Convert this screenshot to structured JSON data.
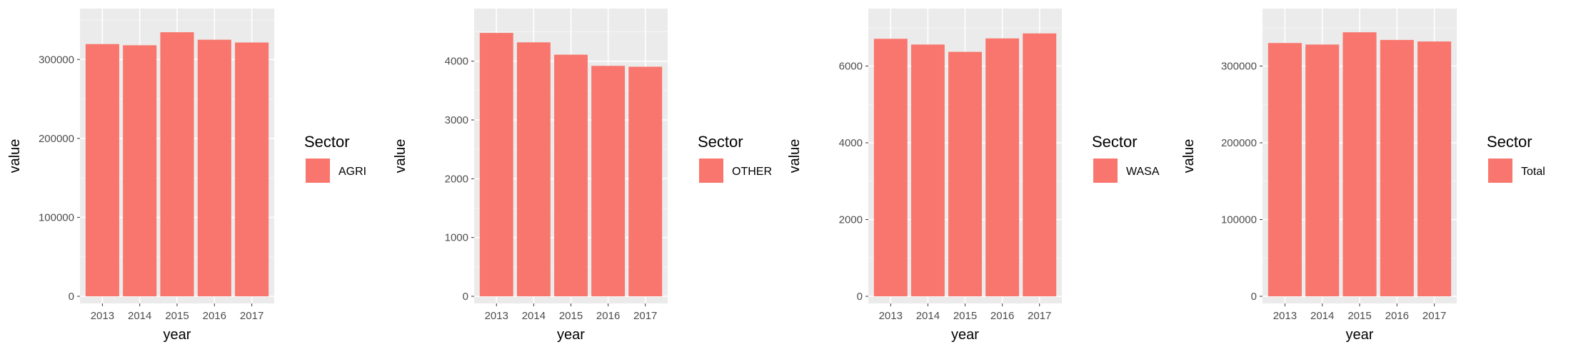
{
  "chart_data": [
    {
      "type": "bar",
      "xlabel": "year",
      "ylabel": "value",
      "categories": [
        "2013",
        "2014",
        "2015",
        "2016",
        "2017"
      ],
      "values": [
        319500,
        318000,
        334500,
        325000,
        321500
      ],
      "ylim": [
        0,
        350000
      ],
      "yticks": [
        0,
        100000,
        200000,
        300000
      ],
      "legend_title": "Sector",
      "legend_label": "AGRI",
      "color": "#F8766D",
      "panel_background": "#EBEBEB",
      "grid": true,
      "legend_position": "right"
    },
    {
      "type": "bar",
      "xlabel": "year",
      "ylabel": "value",
      "categories": [
        "2013",
        "2014",
        "2015",
        "2016",
        "2017"
      ],
      "values": [
        4480,
        4320,
        4110,
        3920,
        3905
      ],
      "ylim": [
        0,
        4700
      ],
      "yticks": [
        0,
        1000,
        2000,
        3000,
        4000
      ],
      "legend_title": "Sector",
      "legend_label": "OTHER",
      "color": "#F8766D",
      "panel_background": "#EBEBEB",
      "grid": true,
      "legend_position": "right"
    },
    {
      "type": "bar",
      "xlabel": "year",
      "ylabel": "value",
      "categories": [
        "2013",
        "2014",
        "2015",
        "2016",
        "2017"
      ],
      "values": [
        6710,
        6560,
        6370,
        6720,
        6850
      ],
      "ylim": [
        0,
        7200
      ],
      "yticks": [
        0,
        2000,
        4000,
        6000
      ],
      "legend_title": "Sector",
      "legend_label": "WASA",
      "color": "#F8766D",
      "panel_background": "#EBEBEB",
      "grid": true,
      "legend_position": "right"
    },
    {
      "type": "bar",
      "xlabel": "year",
      "ylabel": "value",
      "categories": [
        "2013",
        "2014",
        "2015",
        "2016",
        "2017"
      ],
      "values": [
        330000,
        328000,
        344000,
        334000,
        332000
      ],
      "ylim": [
        0,
        360000
      ],
      "yticks": [
        0,
        100000,
        200000,
        300000
      ],
      "legend_title": "Sector",
      "legend_label": "Total",
      "color": "#F8766D",
      "panel_background": "#EBEBEB",
      "grid": true,
      "legend_position": "right"
    }
  ]
}
